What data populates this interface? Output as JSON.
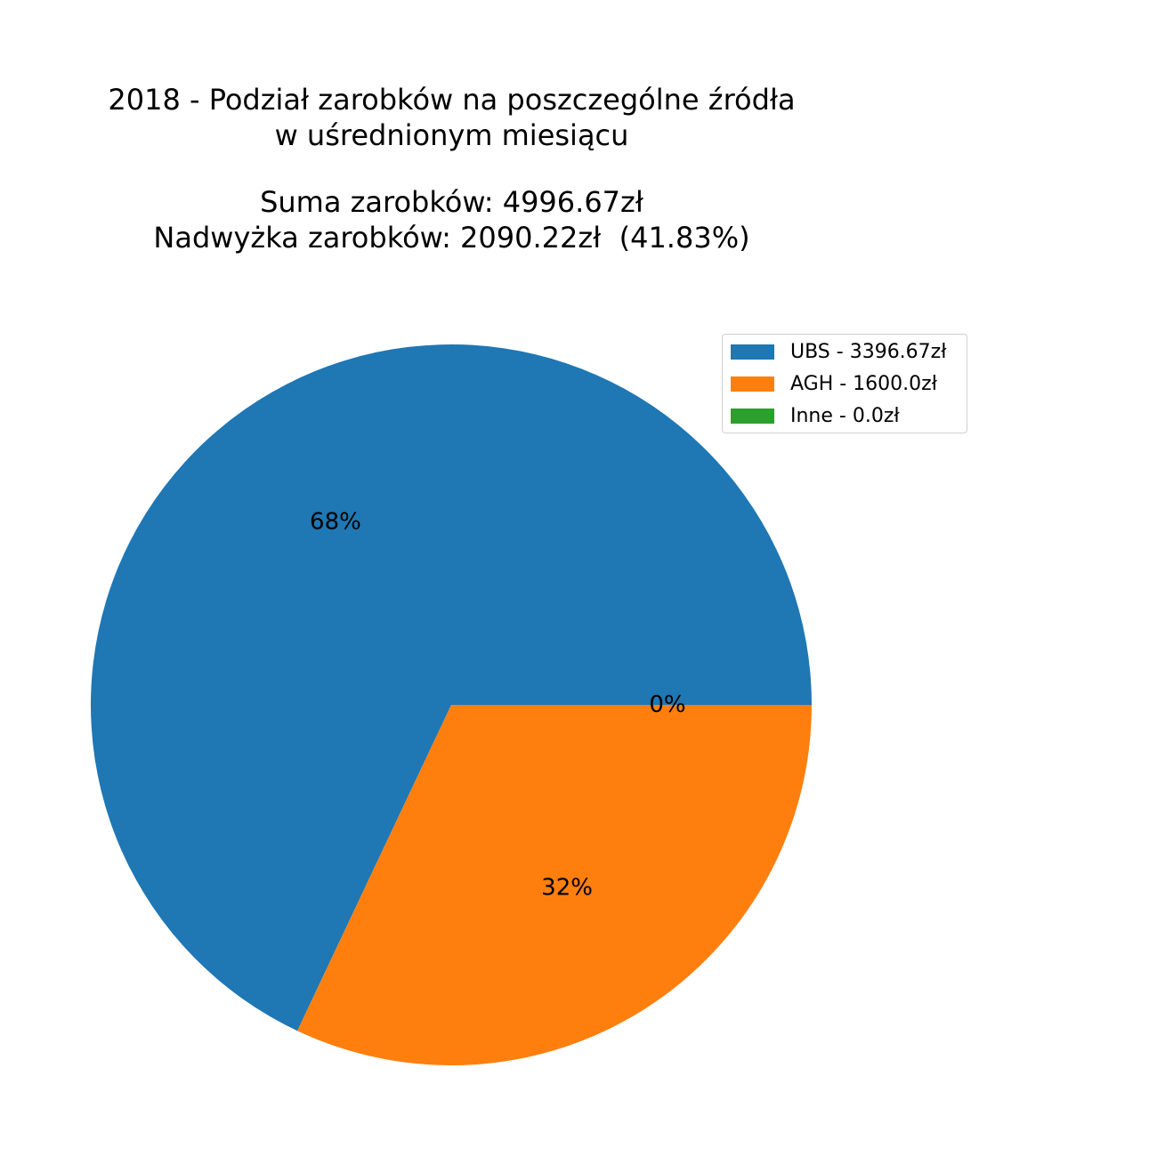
{
  "chart_data": {
    "type": "pie",
    "title_lines": [
      "2018 - Podział zarobków na poszczególne źródła",
      "w uśrednionym miesiącu",
      "",
      "Suma zarobków: 4996.67zł",
      "Nadwyżka zarobków: 2090.22zł  (41.83%)"
    ],
    "slices": [
      {
        "label": "UBS",
        "value": 3396.67,
        "pct_label": "68%",
        "legend": "UBS - 3396.67zł",
        "color": "#1f77b4"
      },
      {
        "label": "AGH",
        "value": 1600.0,
        "pct_label": "32%",
        "legend": "AGH - 1600.0zł",
        "color": "#ff7f0e"
      },
      {
        "label": "Inne",
        "value": 0.0,
        "pct_label": "0%",
        "legend": "Inne - 0.0zł",
        "color": "#2ca02c"
      }
    ],
    "legend_position": "top-right",
    "start_angle_deg": 0,
    "direction": "counterclockwise"
  }
}
